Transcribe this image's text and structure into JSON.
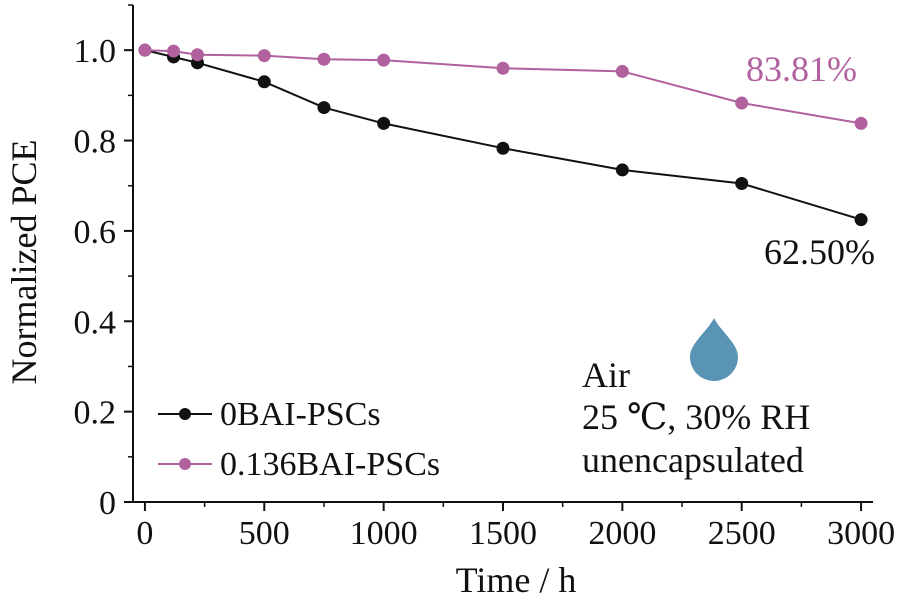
{
  "chart_data": {
    "type": "line",
    "xlabel": "Time / h",
    "ylabel": "Normalized PCE",
    "xlim": [
      -50,
      3050
    ],
    "ylim": [
      0,
      1.1
    ],
    "xticks": [
      0,
      500,
      1000,
      1500,
      2000,
      2500,
      3000
    ],
    "xtick_labels": [
      "0",
      "500",
      "1000",
      "1500",
      "2000",
      "2500",
      "3000"
    ],
    "yticks": [
      0,
      0.2,
      0.4,
      0.6,
      0.8,
      1.0
    ],
    "ytick_labels": [
      "0",
      "0.2",
      "0.4",
      "0.6",
      "0.8",
      "1.0"
    ],
    "series": [
      {
        "name": "0BAI-PSCs",
        "color": "#111111",
        "x": [
          0,
          120,
          220,
          500,
          750,
          1000,
          1500,
          2000,
          2500,
          3000
        ],
        "y": [
          1.0,
          0.985,
          0.972,
          0.93,
          0.873,
          0.838,
          0.783,
          0.735,
          0.705,
          0.625
        ]
      },
      {
        "name": "0.136BAI-PSCs",
        "color": "#b2619f",
        "x": [
          0,
          120,
          220,
          500,
          750,
          1000,
          1500,
          2000,
          2500,
          3000
        ],
        "y": [
          1.0,
          0.998,
          0.99,
          0.988,
          0.98,
          0.978,
          0.96,
          0.953,
          0.883,
          0.838
        ]
      }
    ],
    "annotations": [
      {
        "text": "83.81%",
        "color": "#b2619f",
        "series": "0.136BAI-PSCs"
      },
      {
        "text": "62.50%",
        "color": "#111111",
        "series": "0BAI-PSCs"
      }
    ],
    "conditions": [
      "Air",
      "25 ℃, 30% RH",
      "unencapsulated"
    ],
    "droplet_color": "#5a94b4",
    "legend_position": "bottom-left"
  }
}
